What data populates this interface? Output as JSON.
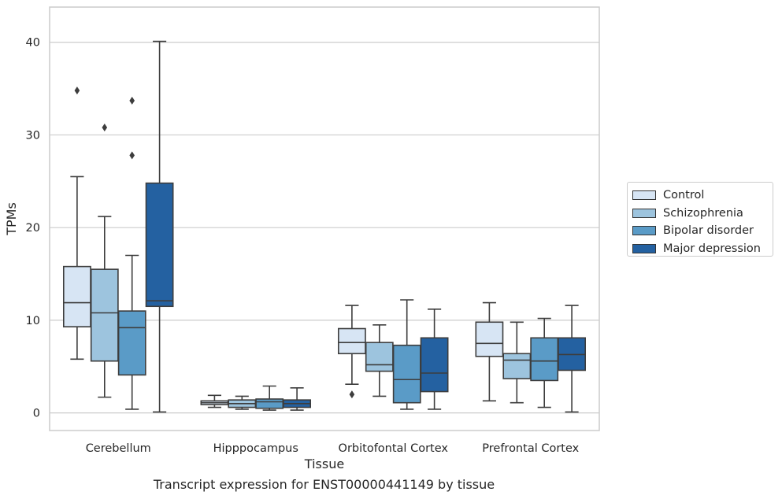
{
  "chart_data": {
    "type": "box",
    "xlabel": "Tissue",
    "ylabel": "TPMs",
    "ylim": [
      -1.9,
      43.8
    ],
    "yticks": [
      0,
      10,
      20,
      30,
      40
    ],
    "grid": "horizontal",
    "legend_position": "right",
    "categories": [
      "Cerebellum",
      "Hipppocampus",
      "Orbitofontal Cortex",
      "Prefrontal Cortex"
    ],
    "series": [
      {
        "name": "Control",
        "color": "#d7e5f4",
        "boxes": [
          {
            "whisker_low": 5.8,
            "q1": 9.3,
            "median": 11.9,
            "q3": 15.8,
            "whisker_high": 25.5,
            "outliers": [
              34.8
            ]
          },
          {
            "whisker_low": 0.6,
            "q1": 0.9,
            "median": 1.1,
            "q3": 1.3,
            "whisker_high": 1.9,
            "outliers": []
          },
          {
            "whisker_low": 3.1,
            "q1": 6.4,
            "median": 7.6,
            "q3": 9.1,
            "whisker_high": 11.6,
            "outliers": [
              2.0
            ]
          },
          {
            "whisker_low": 1.3,
            "q1": 6.1,
            "median": 7.5,
            "q3": 9.8,
            "whisker_high": 11.9,
            "outliers": []
          }
        ]
      },
      {
        "name": "Schizophrenia",
        "color": "#9dc4de",
        "boxes": [
          {
            "whisker_low": 1.7,
            "q1": 5.6,
            "median": 10.8,
            "q3": 15.5,
            "whisker_high": 21.2,
            "outliers": [
              30.8
            ]
          },
          {
            "whisker_low": 0.4,
            "q1": 0.6,
            "median": 1.0,
            "q3": 1.4,
            "whisker_high": 1.8,
            "outliers": []
          },
          {
            "whisker_low": 1.8,
            "q1": 4.5,
            "median": 5.2,
            "q3": 7.6,
            "whisker_high": 9.5,
            "outliers": []
          },
          {
            "whisker_low": 1.1,
            "q1": 3.7,
            "median": 5.7,
            "q3": 6.4,
            "whisker_high": 9.8,
            "outliers": []
          }
        ]
      },
      {
        "name": "Bipolar disorder",
        "color": "#5a9bc7",
        "boxes": [
          {
            "whisker_low": 0.4,
            "q1": 4.1,
            "median": 9.2,
            "q3": 11.0,
            "whisker_high": 17.0,
            "outliers": [
              27.8,
              33.7
            ]
          },
          {
            "whisker_low": 0.3,
            "q1": 0.5,
            "median": 1.2,
            "q3": 1.5,
            "whisker_high": 2.9,
            "outliers": []
          },
          {
            "whisker_low": 0.4,
            "q1": 1.1,
            "median": 3.6,
            "q3": 7.3,
            "whisker_high": 12.2,
            "outliers": []
          },
          {
            "whisker_low": 0.6,
            "q1": 3.5,
            "median": 5.6,
            "q3": 8.1,
            "whisker_high": 10.2,
            "outliers": []
          }
        ]
      },
      {
        "name": "Major depression",
        "color": "#2461a1",
        "boxes": [
          {
            "whisker_low": 0.1,
            "q1": 11.5,
            "median": 12.1,
            "q3": 24.8,
            "whisker_high": 40.1,
            "outliers": []
          },
          {
            "whisker_low": 0.3,
            "q1": 0.6,
            "median": 1.0,
            "q3": 1.4,
            "whisker_high": 2.7,
            "outliers": []
          },
          {
            "whisker_low": 0.4,
            "q1": 2.3,
            "median": 4.3,
            "q3": 8.1,
            "whisker_high": 11.2,
            "outliers": []
          },
          {
            "whisker_low": 0.1,
            "q1": 4.6,
            "median": 6.3,
            "q3": 8.1,
            "whisker_high": 11.6,
            "outliers": []
          }
        ]
      }
    ]
  },
  "caption": "Transcript expression for ENST00000441149 by tissue"
}
